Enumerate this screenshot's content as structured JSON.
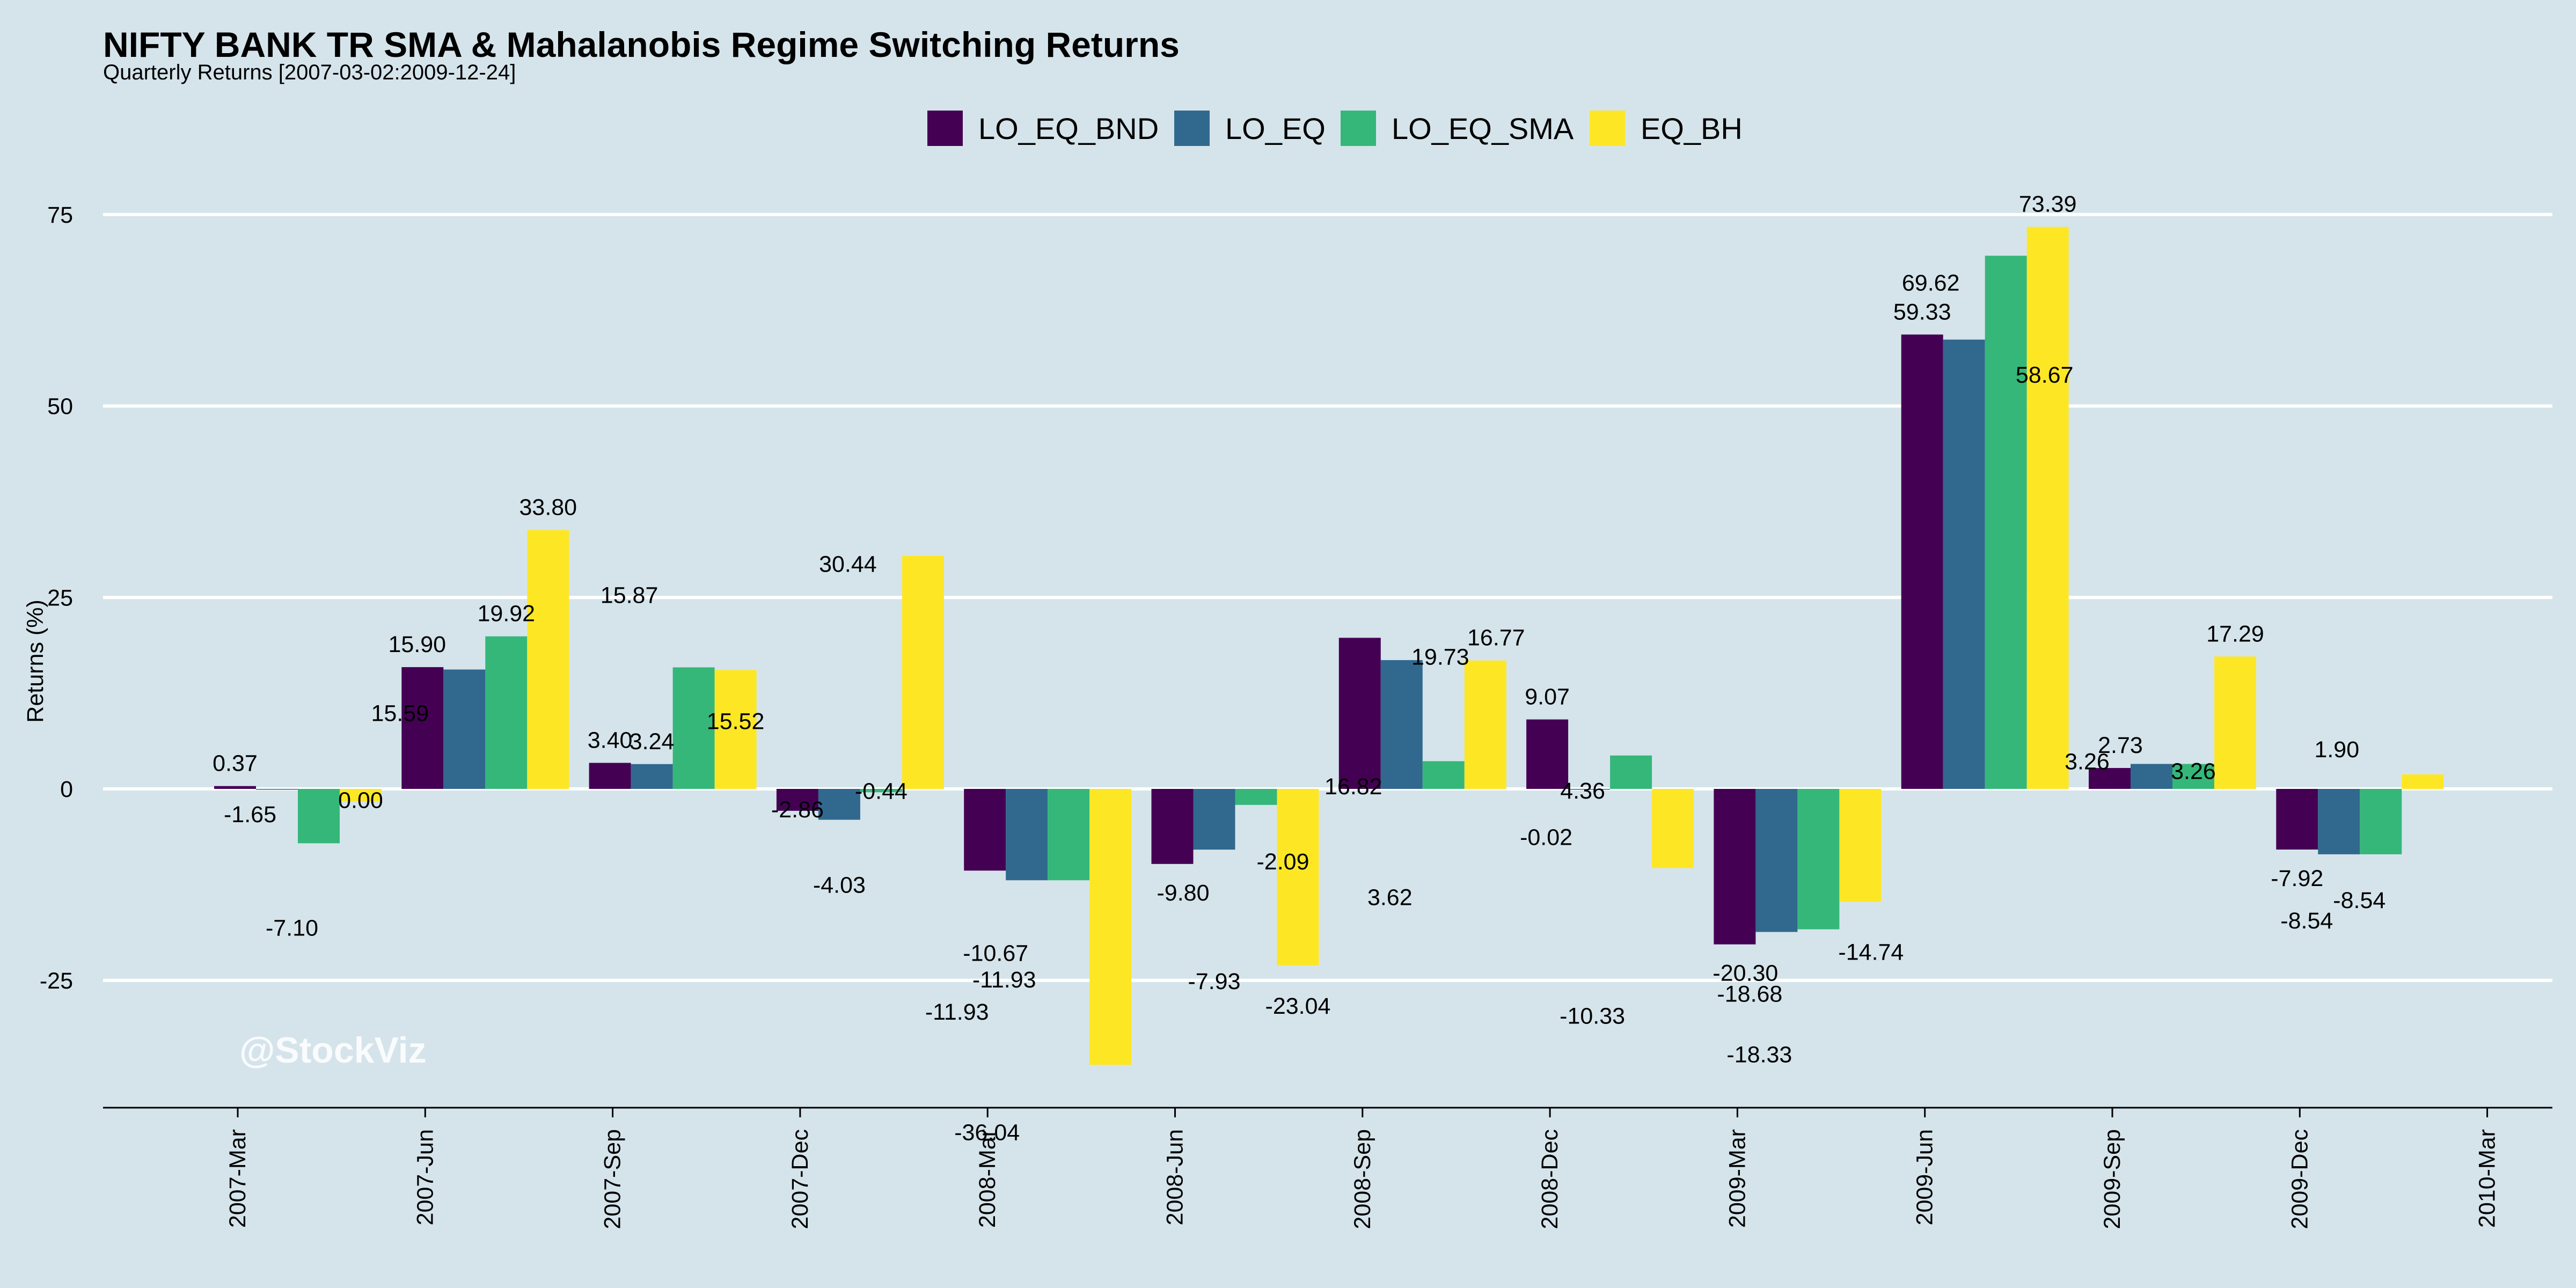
{
  "colors": {
    "background": "#d5e4eb",
    "grid": "#ffffff",
    "axis": "#000000",
    "series": [
      "#440154",
      "#31688e",
      "#35b779",
      "#fde725"
    ]
  },
  "watermark": "@StockViz",
  "chart_data": {
    "type": "bar",
    "title": "NIFTY BANK TR SMA & Mahalanobis Regime Switching Returns",
    "subtitle": "Quarterly Returns [2007-03-02:2009-12-24]",
    "xlabel": "",
    "ylabel": "Returns (%)",
    "ylim": [
      -41,
      82
    ],
    "yticks": [
      -25,
      0,
      25,
      50,
      75
    ],
    "grid": true,
    "legend_position": "top",
    "x_ticks": [
      "2007-Mar",
      "2007-Jun",
      "2007-Sep",
      "2007-Dec",
      "2008-Mar",
      "2008-Jun",
      "2008-Sep",
      "2008-Dec",
      "2009-Mar",
      "2009-Jun",
      "2009-Sep",
      "2009-Dec",
      "2010-Mar"
    ],
    "categories": [
      "2007-Mar",
      "2007-Jun",
      "2007-Sep",
      "2007-Dec",
      "2008-Mar",
      "2008-Jun",
      "2008-Sep",
      "2008-Dec",
      "2009-Mar",
      "2009-Jun",
      "2009-Sep",
      "2009-Dec"
    ],
    "series": [
      {
        "name": "LO_EQ_BND",
        "values": [
          0.37,
          15.9,
          3.4,
          -2.86,
          -10.67,
          -9.8,
          19.73,
          9.07,
          -20.3,
          59.33,
          2.73,
          -7.92
        ]
      },
      {
        "name": "LO_EQ",
        "values": [
          0.0,
          15.59,
          3.24,
          -4.03,
          -11.93,
          -7.93,
          16.82,
          -0.02,
          -18.68,
          58.67,
          3.26,
          -8.54
        ]
      },
      {
        "name": "LO_EQ_SMA",
        "values": [
          -7.1,
          19.92,
          15.87,
          -0.44,
          -11.93,
          -2.09,
          3.62,
          4.36,
          -18.33,
          69.62,
          3.26,
          -8.54
        ]
      },
      {
        "name": "EQ_BH",
        "values": [
          -1.65,
          33.8,
          15.52,
          30.44,
          -36.04,
          -23.04,
          16.77,
          -10.33,
          -14.74,
          73.39,
          17.29,
          1.9
        ]
      }
    ],
    "data_labels": [
      "0.37",
      "-1.65",
      "-7.10",
      "0.00",
      "15.90",
      "15.59",
      "19.92",
      "33.80",
      "3.40",
      "3.24",
      "15.87",
      "15.52",
      "-2.86",
      "-4.03",
      "-0.44",
      "30.44",
      "-10.67",
      "-11.93",
      "-11.93",
      "-36.04",
      "-9.80",
      "-7.93",
      "-2.09",
      "-23.04",
      "19.73",
      "16.82",
      "3.62",
      "16.77",
      "9.07",
      "-0.02",
      "4.36",
      "-10.33",
      "-20.30",
      "-18.68",
      "-18.33",
      "-14.74",
      "59.33",
      "58.67",
      "69.62",
      "73.39",
      "2.73",
      "3.26",
      "3.26",
      "17.29",
      "-7.92",
      "-8.54",
      "-8.54",
      "1.90"
    ]
  }
}
